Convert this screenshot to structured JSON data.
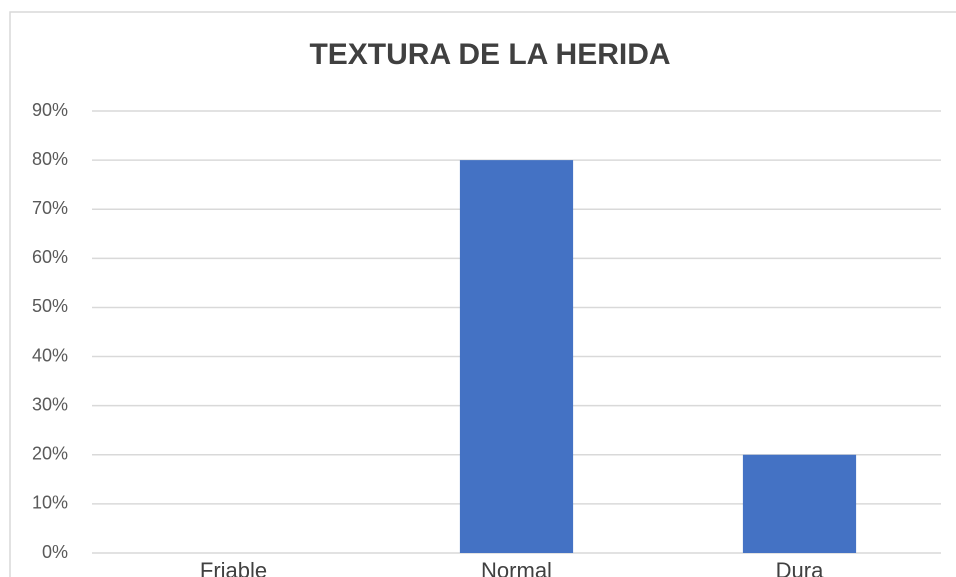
{
  "chart_data": {
    "type": "bar",
    "title": "TEXTURA DE LA HERIDA",
    "categories": [
      "Friable",
      "Normal",
      "Dura"
    ],
    "values": [
      0,
      80,
      20
    ],
    "color": "#4472c4",
    "ylim": [
      0,
      90
    ],
    "yticks": [
      {
        "value": 0,
        "label": "0%"
      },
      {
        "value": 10,
        "label": "10%"
      },
      {
        "value": 20,
        "label": "20%"
      },
      {
        "value": 30,
        "label": "30%"
      },
      {
        "value": 40,
        "label": "40%"
      },
      {
        "value": 50,
        "label": "50%"
      },
      {
        "value": 60,
        "label": "60%"
      },
      {
        "value": 70,
        "label": "70%"
      },
      {
        "value": 80,
        "label": "80%"
      },
      {
        "value": 90,
        "label": "90%"
      }
    ],
    "grid": true
  }
}
